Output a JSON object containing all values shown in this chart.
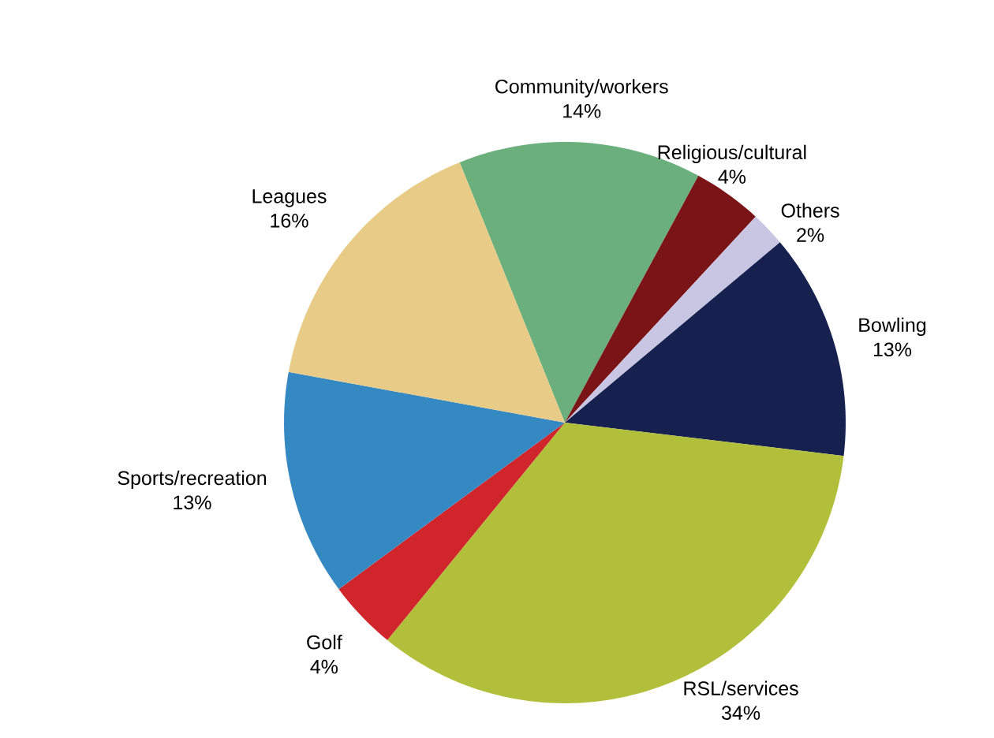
{
  "chart_data": {
    "type": "pie",
    "categories": [
      "Community/workers",
      "Religious/cultural",
      "Others",
      "Bowling",
      "RSL/services",
      "Golf",
      "Sports/recreation",
      "Leagues"
    ],
    "values": [
      14,
      4,
      2,
      13,
      34,
      4,
      13,
      16
    ],
    "value_labels": [
      "14%",
      "4%",
      "2%",
      "13%",
      "34%",
      "4%",
      "13%",
      "16%"
    ],
    "colors": [
      "#6aaf7c",
      "#7b1416",
      "#c9c6e4",
      "#17214f",
      "#b2bf3a",
      "#d0262b",
      "#3589c3",
      "#e8cb86"
    ]
  }
}
